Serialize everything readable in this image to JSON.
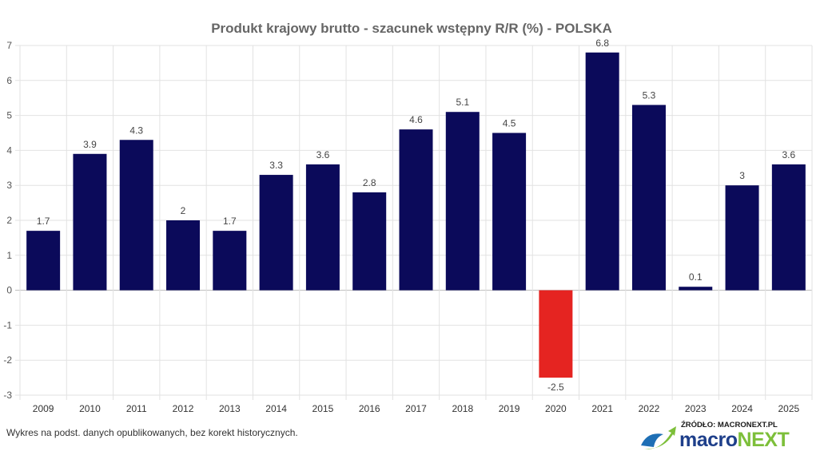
{
  "chart_data": {
    "type": "bar",
    "title": "Produkt krajowy brutto - szacunek wstępny R/R (%) - POLSKA",
    "categories": [
      "2009",
      "2010",
      "2011",
      "2012",
      "2013",
      "2014",
      "2015",
      "2016",
      "2017",
      "2018",
      "2019",
      "2020",
      "2021",
      "2022",
      "2023",
      "2024",
      "2025"
    ],
    "values": [
      1.7,
      3.9,
      4.3,
      2,
      1.7,
      3.3,
      3.6,
      2.8,
      4.6,
      5.1,
      4.5,
      -2.5,
      6.8,
      5.3,
      0.1,
      3,
      3.6
    ],
    "ylim": [
      -3,
      7
    ],
    "yticks": [
      7,
      6,
      5,
      4,
      3,
      2,
      1,
      0,
      -1,
      -2,
      -3
    ],
    "grid": true,
    "colors": {
      "positive": "#0b0a5a",
      "negative": "#e52421"
    }
  },
  "footer": {
    "note": "Wykres na podst. danych opublikowanych, bez korekt historycznych.",
    "source": "ŹRÓDŁO: MACRONEXT.PL",
    "brand_a": "macro",
    "brand_b": "NEXT"
  }
}
